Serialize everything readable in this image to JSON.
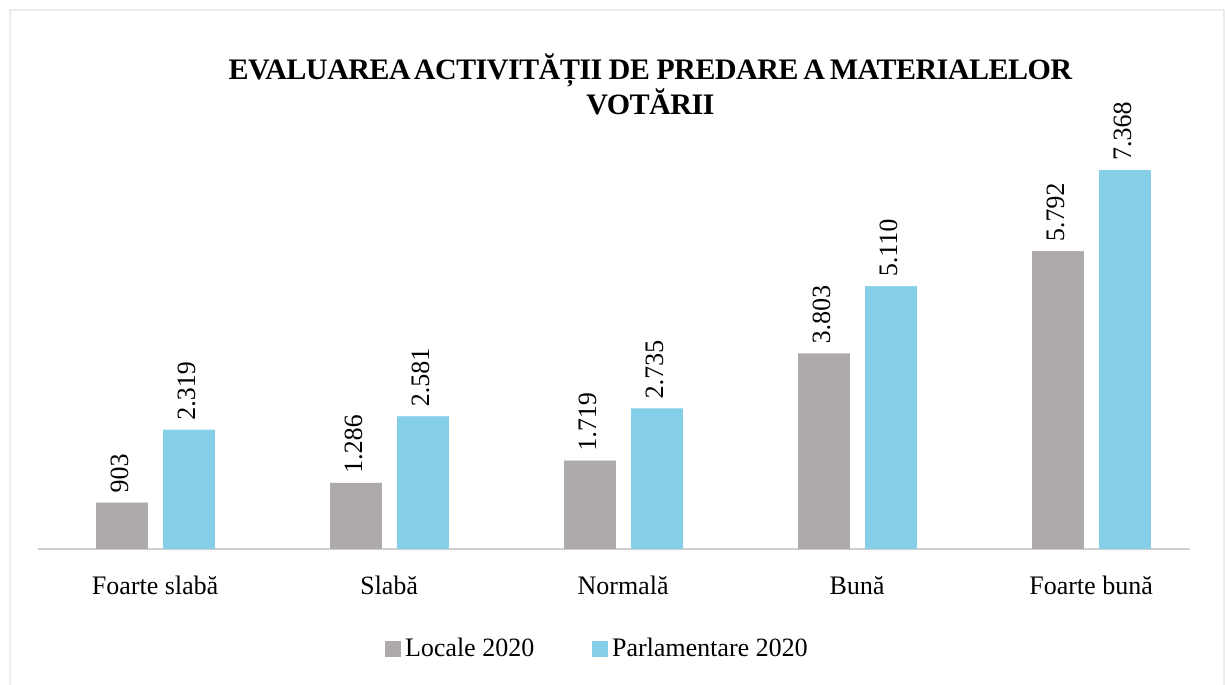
{
  "chart_data": {
    "type": "bar",
    "title": "EVALUAREA ACTIVITĂȚII DE PREDARE A MATERIALELOR VOTĂRII",
    "categories": [
      "Foarte slabă",
      "Slabă",
      "Normală",
      "Bună",
      "Foarte bună"
    ],
    "series": [
      {
        "name": "Locale 2020",
        "color": "#aeaaaa",
        "values": [
          903,
          1286,
          1719,
          3803,
          5792
        ],
        "value_labels": [
          "903",
          "1.286",
          "1.719",
          "3.803",
          "5.792"
        ]
      },
      {
        "name": "Parlamentare 2020",
        "color": "#85d0e8",
        "values": [
          2319,
          2581,
          2735,
          5110,
          7368
        ],
        "value_labels": [
          "2.319",
          "2.581",
          "2.735",
          "5.110",
          "7.368"
        ]
      }
    ],
    "legend": "bottom"
  }
}
